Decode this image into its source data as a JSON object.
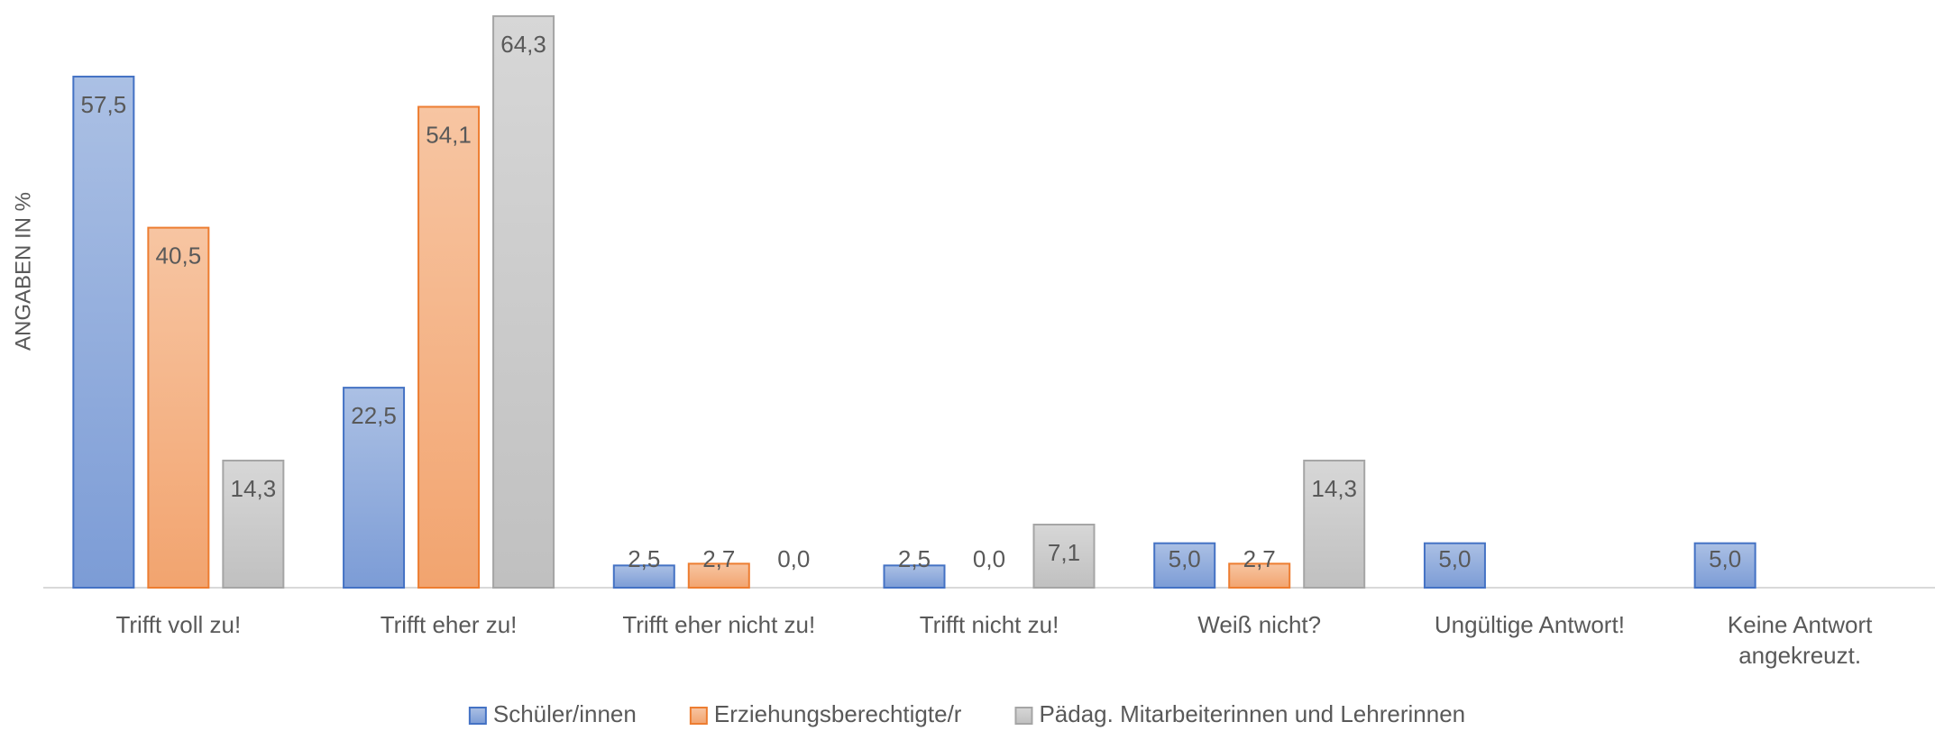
{
  "chart_data": {
    "type": "bar",
    "y_label": "ANGABEN IN %",
    "categories": [
      "Trifft voll zu!",
      "Trifft eher zu!",
      "Trifft eher nicht zu!",
      "Trifft nicht zu!",
      "Weiß nicht?",
      "Ungültige Antwort!",
      "Keine Antwort angekreuzt."
    ],
    "series": [
      {
        "name": "Schüler/innen",
        "color": "#4472c4",
        "values": [
          57.5,
          22.5,
          2.5,
          2.5,
          5.0,
          5.0,
          5.0
        ],
        "value_labels": [
          "57,5",
          "22,5",
          "2,5",
          "2,5",
          "5,0",
          "5,0",
          "5,0"
        ]
      },
      {
        "name": "Erziehungsberechtigte/r",
        "color": "#ed7d31",
        "values": [
          40.5,
          54.1,
          2.7,
          0.0,
          2.7,
          null,
          null
        ],
        "value_labels": [
          "40,5",
          "54,1",
          "2,7",
          "0,0",
          "2,7",
          null,
          null
        ]
      },
      {
        "name": "Pädag. Mitarbeiterinnen und Lehrerinnen",
        "color": "#a5a5a5",
        "values": [
          14.3,
          64.3,
          0.0,
          7.1,
          14.3,
          null,
          null
        ],
        "value_labels": [
          "14,3",
          "64,3",
          "0,0",
          "7,1",
          "14,3",
          null,
          null
        ]
      }
    ],
    "ylim": [
      0,
      65
    ],
    "legend": "bottom"
  }
}
